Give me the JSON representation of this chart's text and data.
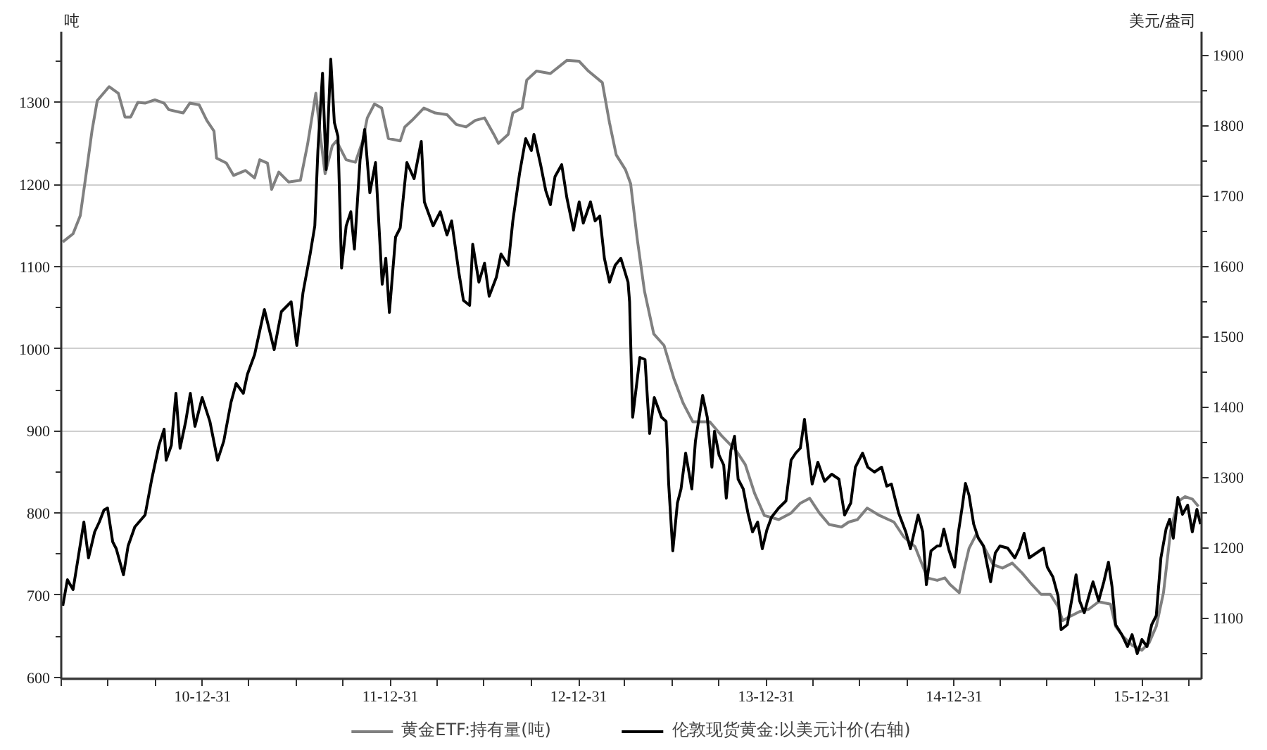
{
  "chart_data": {
    "type": "line",
    "ylabel": "吨",
    "y2label": "美元/盎司",
    "grid": "y",
    "legend": "bottom",
    "xlim": [
      "2010-03-31",
      "2016-04-25"
    ],
    "xticks": [
      {
        "value": "2010-03-31",
        "label": null
      },
      {
        "value": "2010-06-30",
        "label": null
      },
      {
        "value": "2010-09-30",
        "label": null
      },
      {
        "value": "2010-12-31",
        "label": "10-12-31"
      },
      {
        "value": "2011-03-31",
        "label": null
      },
      {
        "value": "2011-06-30",
        "label": null
      },
      {
        "value": "2011-09-30",
        "label": null
      },
      {
        "value": "2011-12-31",
        "label": "11-12-31"
      },
      {
        "value": "2012-03-31",
        "label": null
      },
      {
        "value": "2012-06-30",
        "label": null
      },
      {
        "value": "2012-09-30",
        "label": null
      },
      {
        "value": "2012-12-31",
        "label": "12-12-31"
      },
      {
        "value": "2013-03-31",
        "label": null
      },
      {
        "value": "2013-06-30",
        "label": null
      },
      {
        "value": "2013-09-30",
        "label": null
      },
      {
        "value": "2013-12-31",
        "label": "13-12-31"
      },
      {
        "value": "2014-03-31",
        "label": null
      },
      {
        "value": "2014-06-30",
        "label": null
      },
      {
        "value": "2014-09-30",
        "label": null
      },
      {
        "value": "2014-12-31",
        "label": "14-12-31"
      },
      {
        "value": "2015-03-31",
        "label": null
      },
      {
        "value": "2015-06-30",
        "label": null
      },
      {
        "value": "2015-09-30",
        "label": null
      },
      {
        "value": "2015-12-31",
        "label": "15-12-31"
      },
      {
        "value": "2016-03-31",
        "label": null
      }
    ],
    "ylim": [
      598,
      1386
    ],
    "yticks": [
      600,
      {
        "value": 650,
        "label": null
      },
      700,
      {
        "value": 750,
        "label": null
      },
      800,
      {
        "value": 850,
        "label": null
      },
      900,
      {
        "value": 950,
        "label": null
      },
      1000,
      {
        "value": 1050,
        "label": null
      },
      1100,
      {
        "value": 1150,
        "label": null
      },
      1200,
      {
        "value": 1250,
        "label": null
      },
      1300,
      {
        "value": 1350,
        "label": null
      }
    ],
    "y2lim": [
      1013,
      1933
    ],
    "y2ticks": [
      {
        "value": 1050,
        "label": null
      },
      1100,
      {
        "value": 1150,
        "label": null
      },
      1200,
      {
        "value": 1250,
        "label": null
      },
      1300,
      {
        "value": 1350,
        "label": null
      },
      1400,
      {
        "value": 1450,
        "label": null
      },
      1500,
      {
        "value": 1550,
        "label": null
      },
      1600,
      {
        "value": 1650,
        "label": null
      },
      1700,
      {
        "value": 1750,
        "label": null
      },
      1800,
      {
        "value": 1850,
        "label": null
      },
      1900
    ],
    "series": [
      {
        "name": "黄金ETF:持有量(吨)",
        "color": "#808080",
        "x": [
          "2010-04-03",
          "2010-04-23",
          "2010-05-07",
          "2010-05-20",
          "2010-05-30",
          "2010-06-09",
          "2010-07-02",
          "2010-07-20",
          "2010-08-02",
          "2010-08-13",
          "2010-08-27",
          "2010-09-10",
          "2010-09-29",
          "2010-10-17",
          "2010-10-26",
          "2010-11-23",
          "2010-12-06",
          "2010-12-24",
          "2011-01-08",
          "2011-01-22",
          "2011-01-27",
          "2011-02-15",
          "2011-03-01",
          "2011-03-24",
          "2011-04-11",
          "2011-04-21",
          "2011-05-06",
          "2011-05-14",
          "2011-05-28",
          "2011-06-16",
          "2011-07-09",
          "2011-07-23",
          "2011-08-08",
          "2011-08-17",
          "2011-08-26",
          "2011-09-09",
          "2011-09-17",
          "2011-10-06",
          "2011-10-24",
          "2011-11-07",
          "2011-11-16",
          "2011-11-30",
          "2011-12-14",
          "2011-12-27",
          "2012-01-19",
          "2012-01-28",
          "2012-02-11",
          "2012-03-05",
          "2012-03-27",
          "2012-04-19",
          "2012-05-07",
          "2012-05-26",
          "2012-06-13",
          "2012-07-01",
          "2012-07-19",
          "2012-07-28",
          "2012-08-16",
          "2012-08-25",
          "2012-09-12",
          "2012-09-21",
          "2012-10-10",
          "2012-11-06",
          "2012-12-08",
          "2013-01-01",
          "2013-01-19",
          "2013-02-15",
          "2013-03-01",
          "2013-03-14",
          "2013-04-01",
          "2013-04-11",
          "2013-04-24",
          "2013-05-08",
          "2013-05-26",
          "2013-06-15",
          "2013-07-04",
          "2013-07-22",
          "2013-08-10",
          "2013-09-12",
          "2013-10-05",
          "2013-11-02",
          "2013-11-20",
          "2013-12-08",
          "2013-12-27",
          "2014-01-24",
          "2014-02-17",
          "2014-03-07",
          "2014-03-25",
          "2014-04-13",
          "2014-05-02",
          "2014-05-26",
          "2014-06-09",
          "2014-06-26",
          "2014-07-15",
          "2014-08-08",
          "2014-09-05",
          "2014-09-24",
          "2014-10-16",
          "2014-10-30",
          "2014-11-09",
          "2014-11-28",
          "2014-12-13",
          "2014-12-23",
          "2015-01-10",
          "2015-01-20",
          "2015-01-29",
          "2015-02-12",
          "2015-02-26",
          "2015-03-17",
          "2015-04-04",
          "2015-04-23",
          "2015-05-12",
          "2015-05-31",
          "2015-06-18",
          "2015-07-06",
          "2015-07-21",
          "2015-07-30",
          "2015-08-13",
          "2015-09-01",
          "2015-09-19",
          "2015-10-08",
          "2015-10-31",
          "2015-11-10",
          "2015-11-24",
          "2015-12-12",
          "2015-12-31",
          "2016-01-14",
          "2016-01-28",
          "2016-02-11",
          "2016-02-25",
          "2016-03-10",
          "2016-03-24",
          "2016-04-07",
          "2016-04-19"
        ],
        "values": [
          1130,
          1140,
          1162,
          1220,
          1266,
          1302,
          1319,
          1311,
          1282,
          1282,
          1300,
          1299,
          1303,
          1299,
          1291,
          1287,
          1299,
          1297,
          1278,
          1265,
          1232,
          1226,
          1211,
          1217,
          1208,
          1230,
          1226,
          1194,
          1215,
          1203,
          1205,
          1249,
          1311,
          1258,
          1213,
          1247,
          1253,
          1230,
          1227,
          1253,
          1281,
          1298,
          1293,
          1256,
          1253,
          1270,
          1278,
          1293,
          1287,
          1285,
          1273,
          1270,
          1278,
          1281,
          1261,
          1250,
          1261,
          1287,
          1293,
          1327,
          1338,
          1335,
          1351,
          1350,
          1338,
          1324,
          1275,
          1236,
          1218,
          1201,
          1133,
          1070,
          1018,
          1004,
          964,
          934,
          911,
          911,
          894,
          876,
          859,
          824,
          797,
          792,
          800,
          812,
          818,
          800,
          786,
          783,
          789,
          792,
          806,
          797,
          789,
          771,
          759,
          737,
          721,
          718,
          721,
          713,
          703,
          733,
          757,
          774,
          760,
          737,
          733,
          739,
          727,
          713,
          701,
          701,
          686,
          669,
          674,
          680,
          683,
          692,
          689,
          662,
          650,
          639,
          633,
          642,
          662,
          703,
          779,
          814,
          820,
          817,
          808
        ]
      },
      {
        "name": "伦敦现货黄金:以美元计价(右轴)",
        "color": "#000000",
        "axis": "y2",
        "x": [
          "2010-04-03",
          "2010-04-12",
          "2010-04-23",
          "2010-05-02",
          "2010-05-14",
          "2010-05-23",
          "2010-06-04",
          "2010-06-13",
          "2010-06-22",
          "2010-06-29",
          "2010-07-09",
          "2010-07-16",
          "2010-07-30",
          "2010-08-08",
          "2010-08-21",
          "2010-09-10",
          "2010-09-23",
          "2010-10-07",
          "2010-10-17",
          "2010-10-21",
          "2010-10-31",
          "2010-11-09",
          "2010-11-17",
          "2010-11-28",
          "2010-12-07",
          "2010-12-16",
          "2010-12-30",
          "2011-01-14",
          "2011-01-29",
          "2011-02-10",
          "2011-02-24",
          "2011-03-06",
          "2011-03-20",
          "2011-03-28",
          "2011-04-11",
          "2011-04-21",
          "2011-04-30",
          "2011-05-10",
          "2011-05-19",
          "2011-06-02",
          "2011-06-21",
          "2011-07-02",
          "2011-07-14",
          "2011-07-28",
          "2011-08-06",
          "2011-08-12",
          "2011-08-21",
          "2011-08-28",
          "2011-09-06",
          "2011-09-13",
          "2011-09-20",
          "2011-09-27",
          "2011-10-06",
          "2011-10-15",
          "2011-10-22",
          "2011-11-02",
          "2011-11-11",
          "2011-11-21",
          "2011-12-02",
          "2011-12-15",
          "2011-12-22",
          "2011-12-29",
          "2012-01-10",
          "2012-01-19",
          "2012-02-01",
          "2012-02-15",
          "2012-02-29",
          "2012-03-06",
          "2012-03-23",
          "2012-04-06",
          "2012-04-19",
          "2012-04-28",
          "2012-05-12",
          "2012-05-21",
          "2012-06-02",
          "2012-06-08",
          "2012-06-20",
          "2012-07-01",
          "2012-07-10",
          "2012-07-24",
          "2012-08-02",
          "2012-08-16",
          "2012-08-25",
          "2012-09-07",
          "2012-09-19",
          "2012-09-30",
          "2012-10-05",
          "2012-10-18",
          "2012-10-28",
          "2012-11-06",
          "2012-11-15",
          "2012-11-28",
          "2012-12-08",
          "2012-12-21",
          "2013-01-01",
          "2013-01-09",
          "2013-01-23",
          "2013-02-01",
          "2013-02-10",
          "2013-02-19",
          "2013-03-01",
          "2013-03-12",
          "2013-03-23",
          "2013-04-06",
          "2013-04-09",
          "2013-04-15",
          "2013-04-29",
          "2013-05-09",
          "2013-05-18",
          "2013-05-27",
          "2013-06-10",
          "2013-06-19",
          "2013-06-24",
          "2013-07-02",
          "2013-07-11",
          "2013-07-18",
          "2013-07-27",
          "2013-08-08",
          "2013-08-15",
          "2013-08-29",
          "2013-09-07",
          "2013-09-16",
          "2013-09-21",
          "2013-09-30",
          "2013-10-09",
          "2013-10-14",
          "2013-10-23",
          "2013-10-30",
          "2013-11-06",
          "2013-11-16",
          "2013-11-25",
          "2013-12-04",
          "2013-12-14",
          "2013-12-23",
          "2014-01-01",
          "2014-01-10",
          "2014-01-24",
          "2014-02-07",
          "2014-02-17",
          "2014-02-26",
          "2014-03-07",
          "2014-03-15",
          "2014-03-23",
          "2014-03-30",
          "2014-04-10",
          "2014-04-23",
          "2014-05-07",
          "2014-05-21",
          "2014-06-01",
          "2014-06-13",
          "2014-06-22",
          "2014-07-06",
          "2014-07-16",
          "2014-07-29",
          "2014-08-12",
          "2014-08-22",
          "2014-08-31",
          "2014-09-14",
          "2014-09-28",
          "2014-10-07",
          "2014-10-22",
          "2014-10-31",
          "2014-11-07",
          "2014-11-16",
          "2014-11-28",
          "2014-12-04",
          "2014-12-11",
          "2014-12-21",
          "2015-01-01",
          "2015-01-08",
          "2015-01-15",
          "2015-01-22",
          "2015-01-29",
          "2015-02-07",
          "2015-02-16",
          "2015-02-26",
          "2015-03-12",
          "2015-03-21",
          "2015-03-30",
          "2015-04-14",
          "2015-04-28",
          "2015-05-07",
          "2015-05-16",
          "2015-05-26",
          "2015-06-09",
          "2015-06-23",
          "2015-06-30",
          "2015-07-11",
          "2015-07-21",
          "2015-07-27",
          "2015-08-08",
          "2015-08-18",
          "2015-08-25",
          "2015-09-01",
          "2015-09-10",
          "2015-09-19",
          "2015-09-27",
          "2015-10-08",
          "2015-10-18",
          "2015-10-27",
          "2015-11-03",
          "2015-11-10",
          "2015-11-22",
          "2015-12-03",
          "2015-12-12",
          "2015-12-22",
          "2015-12-31",
          "2016-01-10",
          "2016-01-19",
          "2016-01-28",
          "2016-02-06",
          "2016-02-16",
          "2016-02-23",
          "2016-03-01",
          "2016-03-10",
          "2016-03-19",
          "2016-03-29",
          "2016-04-07",
          "2016-04-16",
          "2016-04-23"
        ],
        "values": [
          1117,
          1154,
          1140,
          1181,
          1236,
          1185,
          1222,
          1236,
          1253,
          1256,
          1208,
          1198,
          1161,
          1202,
          1229,
          1246,
          1297,
          1345,
          1368,
          1324,
          1345,
          1419,
          1341,
          1379,
          1419,
          1372,
          1413,
          1379,
          1324,
          1351,
          1406,
          1433,
          1419,
          1446,
          1474,
          1508,
          1538,
          1508,
          1481,
          1535,
          1549,
          1487,
          1562,
          1617,
          1657,
          1764,
          1874,
          1737,
          1894,
          1804,
          1784,
          1597,
          1657,
          1677,
          1624,
          1751,
          1794,
          1704,
          1747,
          1574,
          1611,
          1534,
          1641,
          1654,
          1747,
          1724,
          1777,
          1691,
          1657,
          1677,
          1644,
          1664,
          1591,
          1551,
          1544,
          1631,
          1577,
          1604,
          1557,
          1584,
          1617,
          1601,
          1664,
          1731,
          1781,
          1764,
          1787,
          1744,
          1707,
          1687,
          1727,
          1744,
          1697,
          1651,
          1691,
          1661,
          1691,
          1664,
          1671,
          1611,
          1577,
          1601,
          1611,
          1577,
          1549,
          1385,
          1470,
          1467,
          1362,
          1413,
          1385,
          1379,
          1290,
          1195,
          1263,
          1283,
          1334,
          1283,
          1351,
          1416,
          1385,
          1314,
          1365,
          1331,
          1317,
          1270,
          1338,
          1358,
          1297,
          1283,
          1249,
          1222,
          1236,
          1198,
          1225,
          1243,
          1256,
          1266,
          1324,
          1334,
          1341,
          1382,
          1331,
          1290,
          1321,
          1294,
          1304,
          1297,
          1246,
          1263,
          1314,
          1334,
          1314,
          1307,
          1314,
          1287,
          1290,
          1249,
          1222,
          1198,
          1246,
          1222,
          1147,
          1195,
          1202,
          1202,
          1226,
          1196,
          1172,
          1220,
          1254,
          1291,
          1274,
          1233,
          1213,
          1202,
          1151,
          1192,
          1202,
          1199,
          1185,
          1199,
          1220,
          1185,
          1192,
          1199,
          1172,
          1158,
          1131,
          1083,
          1090,
          1131,
          1161,
          1124,
          1107,
          1131,
          1151,
          1124,
          1151,
          1179,
          1144,
          1090,
          1076,
          1059,
          1076,
          1049,
          1069,
          1059,
          1090,
          1103,
          1185,
          1226,
          1240,
          1213,
          1271,
          1247,
          1260,
          1222,
          1254,
          1233
        ]
      }
    ]
  }
}
